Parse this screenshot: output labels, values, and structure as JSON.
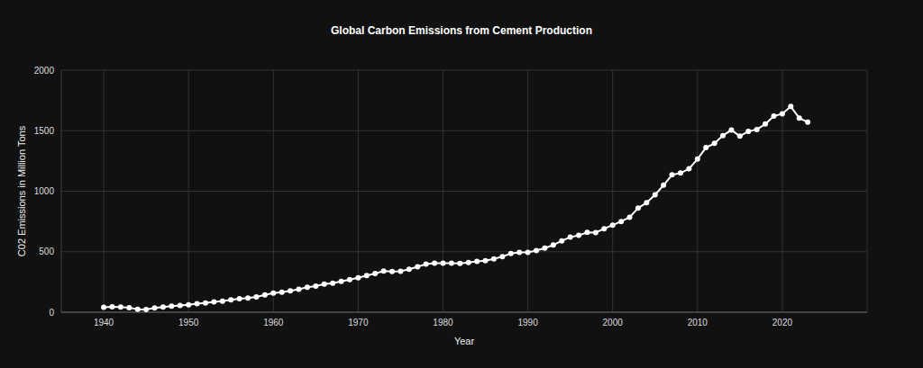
{
  "chart_data": {
    "type": "line",
    "title": "Global Carbon Emissions from Cement Production",
    "x_label": "Year",
    "y_label": "C02 Emissions in Million Tons",
    "x": [
      1940,
      1941,
      1942,
      1943,
      1944,
      1945,
      1946,
      1947,
      1948,
      1949,
      1950,
      1951,
      1952,
      1953,
      1954,
      1955,
      1956,
      1957,
      1958,
      1959,
      1960,
      1961,
      1962,
      1963,
      1964,
      1965,
      1966,
      1967,
      1968,
      1969,
      1970,
      1971,
      1972,
      1973,
      1974,
      1975,
      1976,
      1977,
      1978,
      1979,
      1980,
      1981,
      1982,
      1983,
      1984,
      1985,
      1986,
      1987,
      1988,
      1989,
      1990,
      1991,
      1992,
      1993,
      1994,
      1995,
      1996,
      1997,
      1998,
      1999,
      2000,
      2001,
      2002,
      2003,
      2004,
      2005,
      2006,
      2007,
      2008,
      2009,
      2010,
      2011,
      2012,
      2013,
      2014,
      2015,
      2016,
      2017,
      2018,
      2019,
      2020,
      2021,
      2022,
      2023
    ],
    "values": [
      40,
      45,
      42,
      38,
      25,
      22,
      35,
      42,
      50,
      55,
      62,
      70,
      77,
      85,
      92,
      102,
      112,
      117,
      127,
      143,
      158,
      165,
      177,
      190,
      206,
      215,
      232,
      240,
      255,
      270,
      285,
      303,
      320,
      340,
      337,
      338,
      355,
      375,
      398,
      405,
      405,
      405,
      403,
      410,
      420,
      425,
      440,
      460,
      485,
      495,
      495,
      510,
      530,
      555,
      590,
      620,
      635,
      660,
      658,
      690,
      720,
      750,
      785,
      860,
      905,
      970,
      1050,
      1135,
      1150,
      1185,
      1265,
      1360,
      1395,
      1460,
      1505,
      1455,
      1495,
      1510,
      1555,
      1620,
      1640,
      1700,
      1605,
      1570
    ],
    "color": "#ffffff",
    "xlim": [
      1935,
      2030
    ],
    "xticks": [
      1940,
      1950,
      1960,
      1970,
      1980,
      1990,
      2000,
      2010,
      2020
    ],
    "ylim": [
      0,
      2000
    ],
    "yticks": [
      0,
      500,
      1000,
      1500,
      2000
    ],
    "grid": true,
    "marker": "circle",
    "line_style": "solid"
  }
}
